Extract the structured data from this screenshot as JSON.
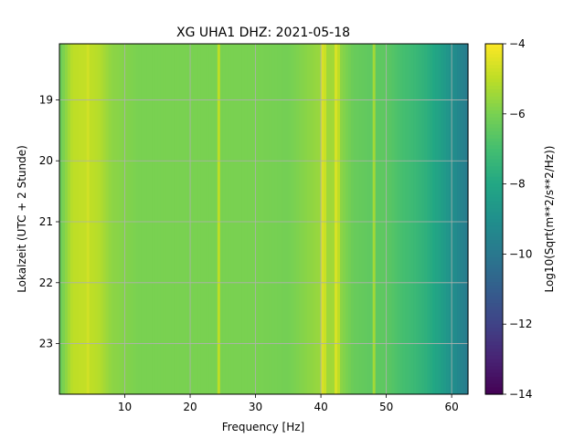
{
  "chart_data": {
    "type": "heatmap",
    "title": "XG UHA1  DHZ: 2021-05-18",
    "xlabel": "Frequency [Hz]",
    "ylabel": "Lokalzeit (UTC + 2 Stunde)",
    "colorbar_label": "Log10(Sqrt(m**2/s**2/Hz))",
    "colormap": "viridis",
    "xlim": [
      0,
      62.5
    ],
    "ylim": [
      18.08,
      23.83
    ],
    "y_inverted": true,
    "grid": true,
    "x_ticks": [
      10,
      20,
      30,
      40,
      50,
      60
    ],
    "y_ticks": [
      19,
      20,
      21,
      22,
      23
    ],
    "clim": [
      -14,
      -4
    ],
    "colorbar_ticks": [
      -4,
      -6,
      -8,
      -10,
      -12,
      -14
    ],
    "baseline_profile": {
      "frequency_hz": [
        0,
        2,
        4,
        6,
        8,
        12,
        16,
        20,
        25,
        30,
        35,
        40,
        42,
        45,
        48,
        50,
        52,
        54,
        56,
        58,
        60,
        62.5
      ],
      "log10_amplitude": [
        -6.4,
        -5.0,
        -4.9,
        -5.1,
        -5.7,
        -6.0,
        -6.0,
        -6.0,
        -6.0,
        -6.0,
        -6.1,
        -5.5,
        -5.4,
        -6.3,
        -6.5,
        -6.5,
        -6.9,
        -7.2,
        -7.6,
        -8.2,
        -9.0,
        -9.9
      ]
    },
    "spectral_lines": [
      {
        "frequency_hz": 4.5,
        "log10_amplitude": -4.7
      },
      {
        "frequency_hz": 24.4,
        "log10_amplitude": -5.0
      },
      {
        "frequency_hz": 40.3,
        "log10_amplitude": -4.6
      },
      {
        "frequency_hz": 40.8,
        "log10_amplitude": -4.8
      },
      {
        "frequency_hz": 42.2,
        "log10_amplitude": -4.6
      },
      {
        "frequency_hz": 42.8,
        "log10_amplitude": -5.0
      },
      {
        "frequency_hz": 48.0,
        "log10_amplitude": -5.4
      }
    ]
  }
}
